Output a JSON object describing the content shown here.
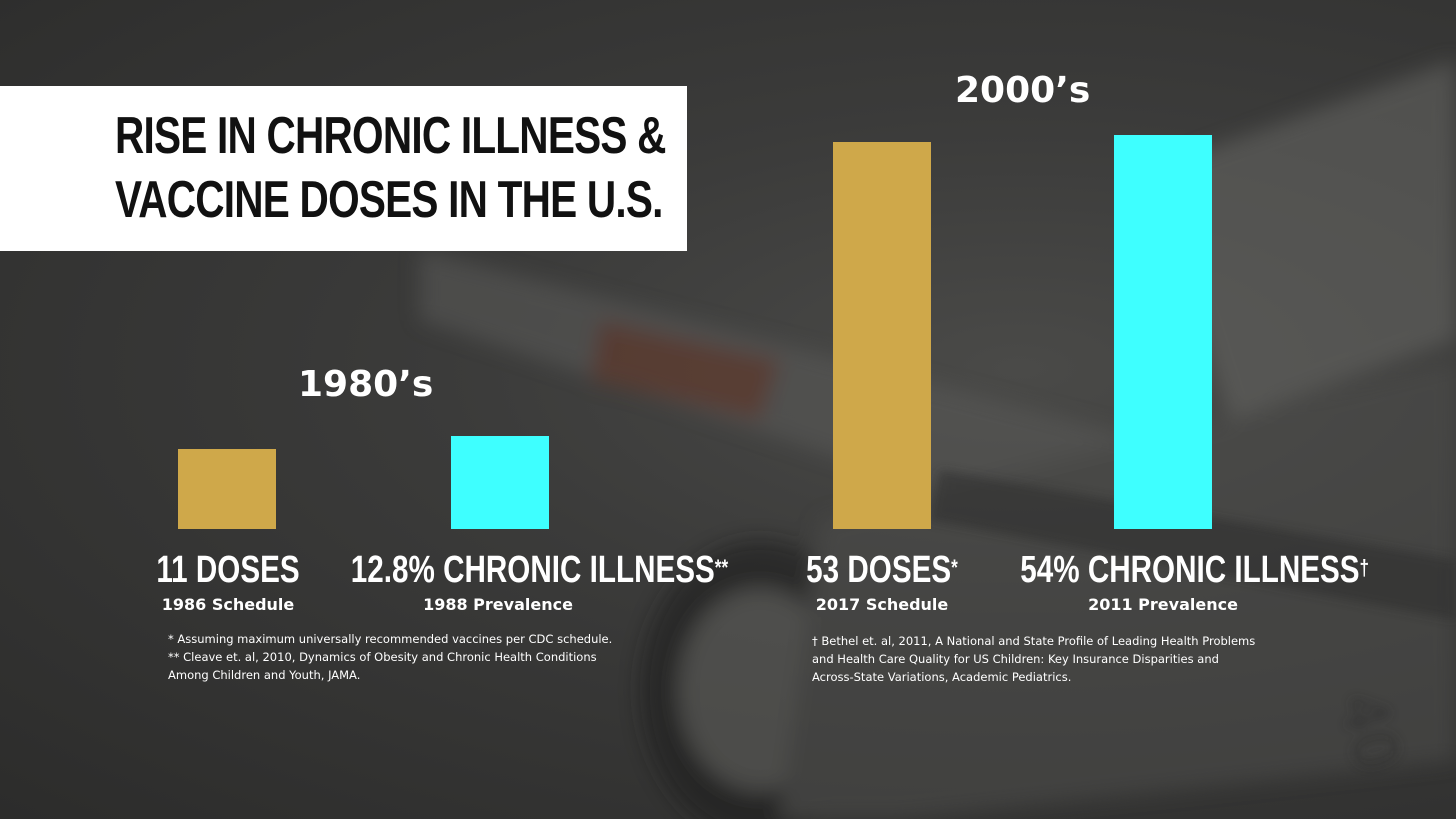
{
  "title": {
    "line1": "RISE IN CHRONIC ILLNESS &",
    "line2": "VACCINE DOSES IN THE U.S."
  },
  "colors": {
    "doses": "#cfa84a",
    "illness": "#3effff",
    "title_bg": "#ffffff"
  },
  "chart_data": {
    "type": "bar",
    "title": "RISE IN CHRONIC ILLNESS & VACCINE DOSES IN THE U.S.",
    "groups": [
      {
        "name": "1980’s",
        "bars": [
          {
            "series": "doses",
            "value": 11,
            "label": "11 DOSES",
            "sup": "",
            "sublabel": "1986 Schedule"
          },
          {
            "series": "illness",
            "value": 12.8,
            "label": "12.8% CHRONIC ILLNESS",
            "sup": "**",
            "sublabel": "1988 Prevalence"
          }
        ]
      },
      {
        "name": "2000’s",
        "bars": [
          {
            "series": "doses",
            "value": 53,
            "label": "53 DOSES",
            "sup": "*",
            "sublabel": "2017 Schedule"
          },
          {
            "series": "illness",
            "value": 54,
            "label": "54% CHRONIC ILLNESS",
            "sup": "†",
            "sublabel": "2011 Prevalence"
          }
        ]
      }
    ]
  },
  "footnotes": {
    "left": [
      "* Assuming maximum universally recommended vaccines per CDC schedule.",
      "** Cleave et. al, 2010, Dynamics of Obesity and Chronic Health Conditions",
      "Among Children and Youth, JAMA."
    ],
    "right": [
      "† Bethel et. al, 2011, A National and State Profile of Leading Health Problems",
      "and Health Care Quality for US Children: Key Insurance Disparities and",
      "Across-State Variations, Academic Pediatrics."
    ]
  }
}
